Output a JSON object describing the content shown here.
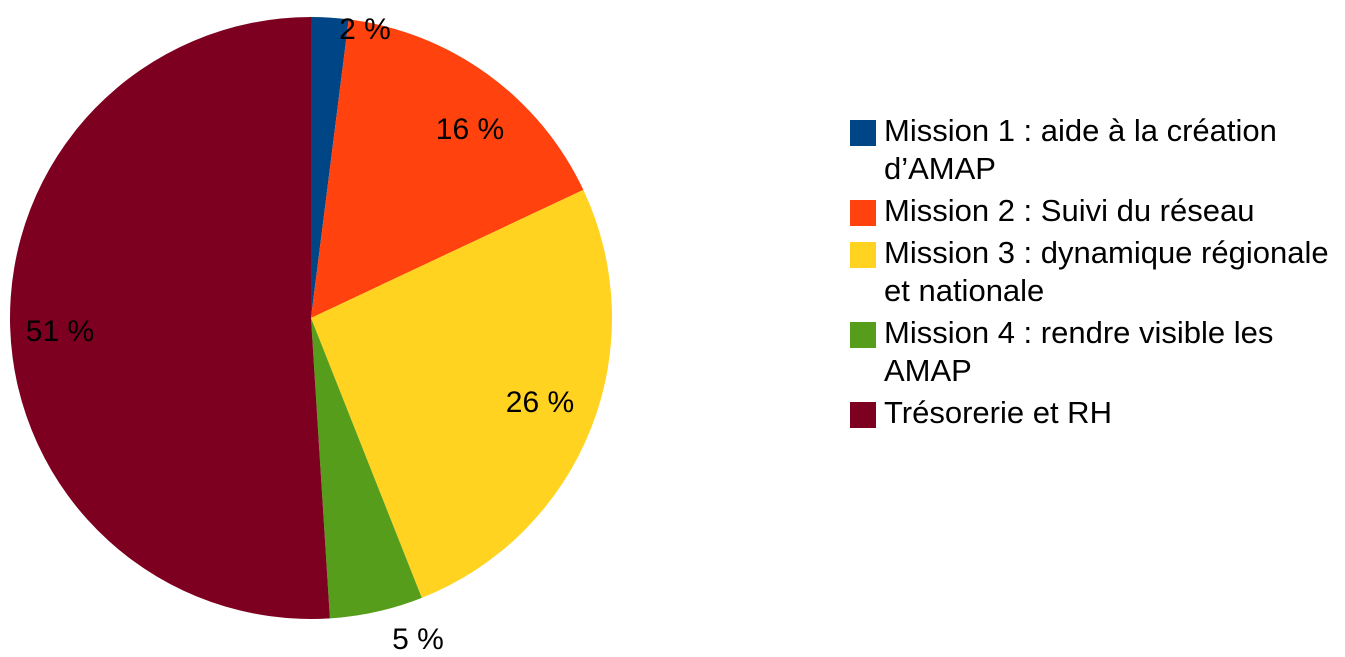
{
  "chart_data": {
    "type": "pie",
    "categories": [
      "Mission 1 : aide à la création d’AMAP",
      "Mission 2 : Suivi du réseau",
      "Mission 3 : dynamique régionale et nationale",
      "Mission 4 : rendre visible les AMAP",
      "Trésorerie et RH"
    ],
    "values": [
      2,
      16,
      26,
      5,
      51
    ],
    "value_labels": [
      "2 %",
      "16 %",
      "26 %",
      "5 %",
      "51 %"
    ],
    "colors": [
      "#004586",
      "#ff420e",
      "#ffd320",
      "#579d1c",
      "#7e0021"
    ],
    "legend": "right"
  }
}
